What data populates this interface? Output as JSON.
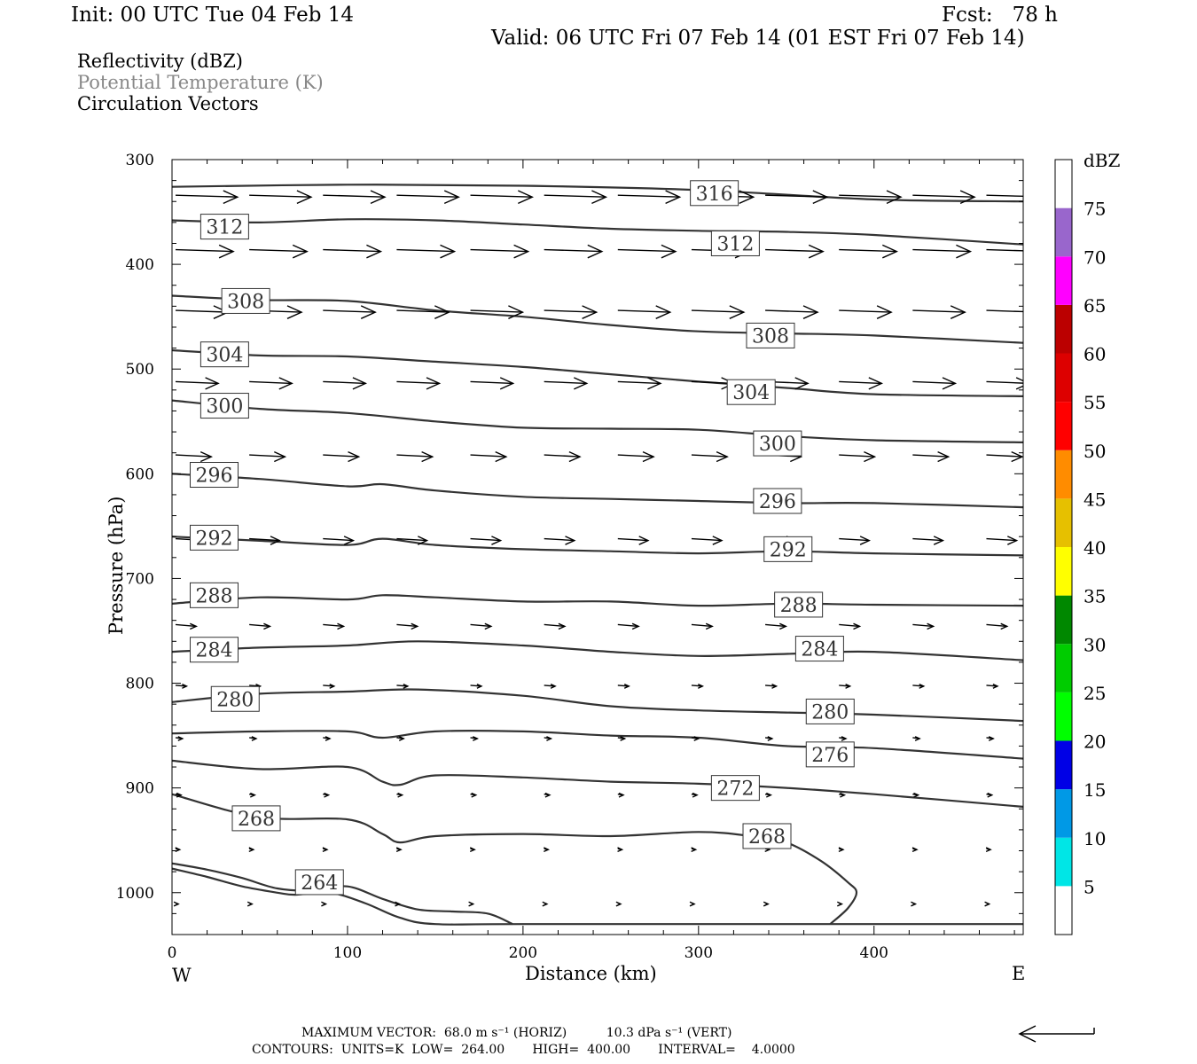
{
  "header": {
    "init": "Init: 00 UTC Tue 04 Feb 14",
    "fcst": "Fcst:   78 h",
    "valid": "Valid: 06 UTC Fri 07 Feb 14 (01 EST Fri 07 Feb 14)"
  },
  "fields": {
    "reflectivity": "Reflectivity (dBZ)",
    "theta": "Potential Temperature (K)",
    "vectors": "Circulation Vectors"
  },
  "footer": {
    "max_vector": "MAXIMUM VECTOR:  68.0 m s⁻¹ (HORIZ)          10.3 dPa s⁻¹ (VERT)",
    "contours": "CONTOURS:  UNITS=K  LOW=  264.00       HIGH=  400.00       INTERVAL=    4.0000"
  },
  "chart_data": {
    "type": "line",
    "xlabel": "Distance (km)",
    "ylabel": "Pressure (hPa)",
    "xlim": [
      0,
      485
    ],
    "ylim": [
      300,
      1040
    ],
    "x_ticks": [
      0,
      100,
      200,
      300,
      400
    ],
    "y_ticks": [
      300,
      400,
      500,
      600,
      700,
      800,
      900,
      1000
    ],
    "x_end_labels": {
      "left": "W",
      "right": "E"
    },
    "grid": false,
    "colors": {
      "contour": "#333333",
      "vector": "#000000"
    },
    "series": [
      {
        "name": "316",
        "label_at": [
          309,
          332
        ],
        "x": [
          0,
          100,
          200,
          300,
          400,
          485
        ],
        "y": [
          326,
          324,
          325,
          329,
          338,
          340
        ]
      },
      {
        "name": "312",
        "label_at": [
          30,
          364
        ],
        "x": [
          0,
          50,
          100,
          150,
          200,
          250,
          300,
          350,
          400,
          485
        ],
        "y": [
          358,
          360,
          357,
          358,
          362,
          366,
          368,
          369,
          372,
          381
        ]
      },
      {
        "name": "312",
        "label_at": [
          321,
          380
        ],
        "x": [],
        "y": []
      },
      {
        "name": "308",
        "label_at": [
          42,
          435
        ],
        "x": [
          0,
          50,
          100,
          150,
          200,
          250,
          300,
          350,
          400,
          485
        ],
        "y": [
          430,
          434,
          435,
          444,
          450,
          458,
          464,
          466,
          468,
          475
        ]
      },
      {
        "name": "308",
        "label_at": [
          341,
          468
        ],
        "x": [],
        "y": []
      },
      {
        "name": "304",
        "label_at": [
          30,
          486
        ],
        "x": [
          0,
          50,
          100,
          150,
          200,
          250,
          300,
          350,
          400,
          485
        ],
        "y": [
          482,
          487,
          488,
          493,
          498,
          505,
          512,
          518,
          524,
          526
        ]
      },
      {
        "name": "304",
        "label_at": [
          330,
          522
        ],
        "x": [],
        "y": []
      },
      {
        "name": "300",
        "label_at": [
          30,
          535
        ],
        "x": [
          0,
          50,
          100,
          150,
          200,
          250,
          300,
          350,
          400,
          485
        ],
        "y": [
          530,
          538,
          542,
          550,
          556,
          557,
          558,
          564,
          568,
          570
        ]
      },
      {
        "name": "300",
        "label_at": [
          345,
          571
        ],
        "x": [],
        "y": []
      },
      {
        "name": "296",
        "label_at": [
          24,
          601
        ],
        "x": [
          0,
          50,
          100,
          120,
          150,
          200,
          250,
          300,
          350,
          400,
          485
        ],
        "y": [
          600,
          605,
          612,
          610,
          616,
          622,
          624,
          626,
          628,
          628,
          632
        ]
      },
      {
        "name": "296",
        "label_at": [
          345,
          626
        ],
        "x": [],
        "y": []
      },
      {
        "name": "292",
        "label_at": [
          24,
          661
        ],
        "x": [
          0,
          50,
          100,
          120,
          150,
          200,
          250,
          300,
          350,
          400,
          485
        ],
        "y": [
          660,
          664,
          668,
          662,
          668,
          672,
          674,
          676,
          674,
          676,
          678
        ]
      },
      {
        "name": "292",
        "label_at": [
          351,
          672
        ],
        "x": [],
        "y": []
      },
      {
        "name": "288",
        "label_at": [
          24,
          716
        ],
        "x": [
          0,
          50,
          100,
          120,
          150,
          200,
          250,
          300,
          350,
          400,
          485
        ],
        "y": [
          724,
          718,
          720,
          716,
          718,
          722,
          722,
          726,
          724,
          725,
          726
        ]
      },
      {
        "name": "288",
        "label_at": [
          357,
          725
        ],
        "x": [],
        "y": []
      },
      {
        "name": "284",
        "label_at": [
          24,
          768
        ],
        "x": [
          0,
          50,
          100,
          140,
          200,
          250,
          300,
          350,
          400,
          485
        ],
        "y": [
          770,
          766,
          764,
          760,
          764,
          770,
          774,
          772,
          770,
          778
        ]
      },
      {
        "name": "284",
        "label_at": [
          369,
          767
        ],
        "x": [],
        "y": []
      },
      {
        "name": "280",
        "label_at": [
          36,
          815
        ],
        "x": [
          0,
          50,
          100,
          140,
          200,
          250,
          300,
          350,
          400,
          485
        ],
        "y": [
          818,
          810,
          808,
          806,
          812,
          822,
          826,
          828,
          830,
          836
        ]
      },
      {
        "name": "280",
        "label_at": [
          375,
          827
        ],
        "x": [],
        "y": []
      },
      {
        "name": "276",
        "label_at": [
          375,
          868
        ],
        "x": [
          0,
          50,
          100,
          120,
          150,
          200,
          250,
          300,
          350,
          400,
          485
        ],
        "y": [
          848,
          846,
          846,
          852,
          846,
          846,
          850,
          852,
          860,
          862,
          872
        ]
      },
      {
        "name": "272",
        "label_at": [
          321,
          900
        ],
        "x": [
          0,
          50,
          100,
          120,
          130,
          150,
          200,
          250,
          300,
          350,
          400,
          485
        ],
        "y": [
          874,
          882,
          880,
          894,
          897,
          888,
          890,
          894,
          896,
          900,
          906,
          918
        ]
      },
      {
        "name": "268",
        "label_at": [
          48,
          929
        ],
        "x": [
          0,
          50,
          100,
          120,
          130,
          150,
          200,
          250,
          300,
          330,
          350,
          370,
          385,
          390,
          385,
          375
        ],
        "y": [
          906,
          928,
          930,
          944,
          952,
          946,
          944,
          946,
          942,
          946,
          952,
          970,
          990,
          1000,
          1015,
          1030
        ]
      },
      {
        "name": "268",
        "label_at": [
          339,
          946
        ],
        "x": [],
        "y": []
      },
      {
        "name": "264",
        "label_at": [
          84,
          990
        ],
        "x": [
          0,
          20,
          40,
          60,
          80,
          100,
          120,
          140,
          160,
          180,
          194
        ],
        "y": [
          972,
          978,
          986,
          996,
          998,
          994,
          1006,
          1016,
          1018,
          1020,
          1030
        ]
      },
      {
        "name": "264",
        "label_at": [],
        "x": [
          0,
          20,
          40,
          60,
          70,
          90,
          110,
          130,
          150,
          200,
          400,
          485
        ],
        "y": [
          977,
          985,
          994,
          1000,
          1002,
          1000,
          1010,
          1024,
          1030,
          1030,
          1030,
          1030
        ]
      }
    ],
    "vectors_spec": {
      "x": [
        0,
        42,
        84,
        126,
        168,
        210,
        252,
        294,
        336,
        378,
        420,
        462
      ],
      "rows": [
        {
          "p": 334,
          "u": 45
        },
        {
          "p": 386,
          "u": 42
        },
        {
          "p": 444,
          "u": 38
        },
        {
          "p": 512,
          "u": 31
        },
        {
          "p": 582,
          "u": 26
        },
        {
          "p": 662,
          "u": 22
        },
        {
          "p": 744,
          "u": 15
        },
        {
          "p": 802,
          "u": 8
        },
        {
          "p": 852,
          "u": 5
        },
        {
          "p": 906,
          "u": 4
        },
        {
          "p": 958,
          "u": 3
        },
        {
          "p": 1010,
          "u": 2
        }
      ]
    },
    "colorbar": {
      "title": "dBZ",
      "levels": [
        5,
        10,
        15,
        20,
        25,
        30,
        35,
        40,
        45,
        50,
        55,
        60,
        65,
        70,
        75
      ],
      "colors": [
        "#ffffff",
        "#00e6e6",
        "#0099e6",
        "#0000e6",
        "#00ff00",
        "#00cc00",
        "#008800",
        "#ffff00",
        "#e6c000",
        "#ff8c00",
        "#ff0000",
        "#dd0000",
        "#bb0000",
        "#ff00ff",
        "#9966cc",
        "#ffffff"
      ]
    },
    "max_vector_arrow": "reference"
  }
}
